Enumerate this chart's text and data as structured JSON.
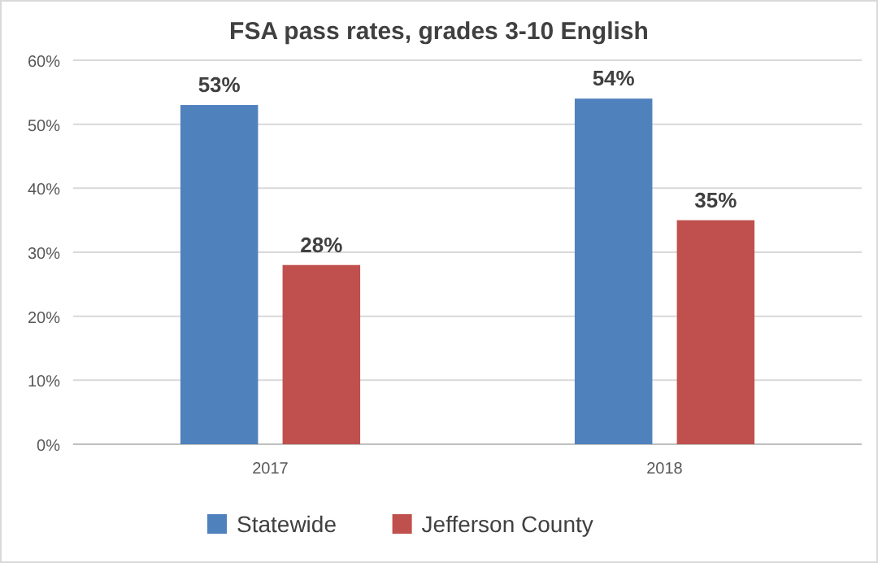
{
  "chart_data": {
    "type": "bar",
    "title": "FSA pass rates, grades 3-10 English",
    "categories": [
      "2017",
      "2018"
    ],
    "series": [
      {
        "name": "Statewide",
        "color": "#4f81bd",
        "values": [
          53,
          54
        ],
        "value_labels": [
          "53%",
          "54%"
        ]
      },
      {
        "name": "Jefferson County",
        "color": "#c0504d",
        "values": [
          28,
          35
        ],
        "value_labels": [
          "28%",
          "35%"
        ]
      }
    ],
    "ylim": [
      0,
      60
    ],
    "yticks": [
      {
        "value": 0,
        "label": "0%"
      },
      {
        "value": 10,
        "label": "10%"
      },
      {
        "value": 20,
        "label": "20%"
      },
      {
        "value": 30,
        "label": "30%"
      },
      {
        "value": 40,
        "label": "40%"
      },
      {
        "value": 50,
        "label": "50%"
      },
      {
        "value": 60,
        "label": "60%"
      }
    ],
    "grid": "y",
    "legend": "bottom"
  }
}
